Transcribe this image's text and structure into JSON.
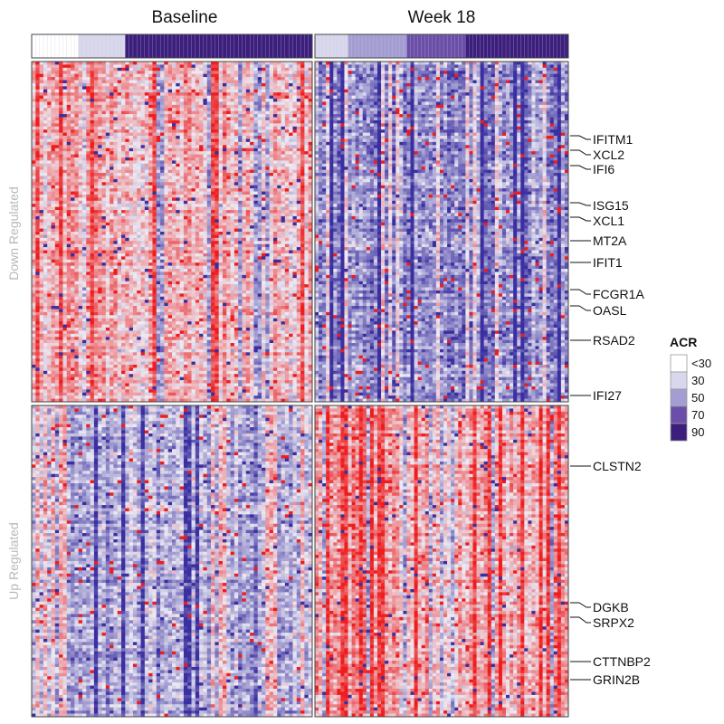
{
  "chart_data": {
    "type": "heatmap",
    "columns": [
      "Baseline",
      "Week 18"
    ],
    "rows": [
      "Down Regulated",
      "Up Regulated"
    ],
    "annotation": {
      "name": "ACR",
      "legend_labels": [
        "<30",
        "30",
        "50",
        "70",
        "90"
      ],
      "legend_colors": [
        "#ffffff",
        "#d9d7ec",
        "#a49dd1",
        "#6a4ea8",
        "#3c1e7d"
      ],
      "baseline_segments": [
        {
          "level": "<30",
          "count": 12
        },
        {
          "level": "30",
          "count": 12
        },
        {
          "level": "90",
          "count": 48
        }
      ],
      "week18_segments": [
        {
          "level": "30",
          "count": 9
        },
        {
          "level": "50",
          "count": 16
        },
        {
          "level": "70",
          "count": 16
        },
        {
          "level": "90",
          "count": 28
        }
      ]
    },
    "scale_colors": {
      "low": "#3a2fa0",
      "mid": "#ecebf4",
      "high": "#ee1c1c"
    },
    "labeled_genes": {
      "down_regulated": [
        "IFITM1",
        "XCL2",
        "IFI6",
        "ISG15",
        "XCL1",
        "MT2A",
        "IFIT1",
        "FCGR1A",
        "OASL",
        "RSAD2",
        "IFI27"
      ],
      "up_regulated": [
        "CLSTN2",
        "DGKB",
        "SRPX2",
        "CTTNBP2",
        "GRIN2B"
      ]
    },
    "panel_tendency": {
      "baseline_down": 0.25,
      "week18_down": -0.45,
      "baseline_up": -0.28,
      "week18_up": 0.32
    }
  }
}
